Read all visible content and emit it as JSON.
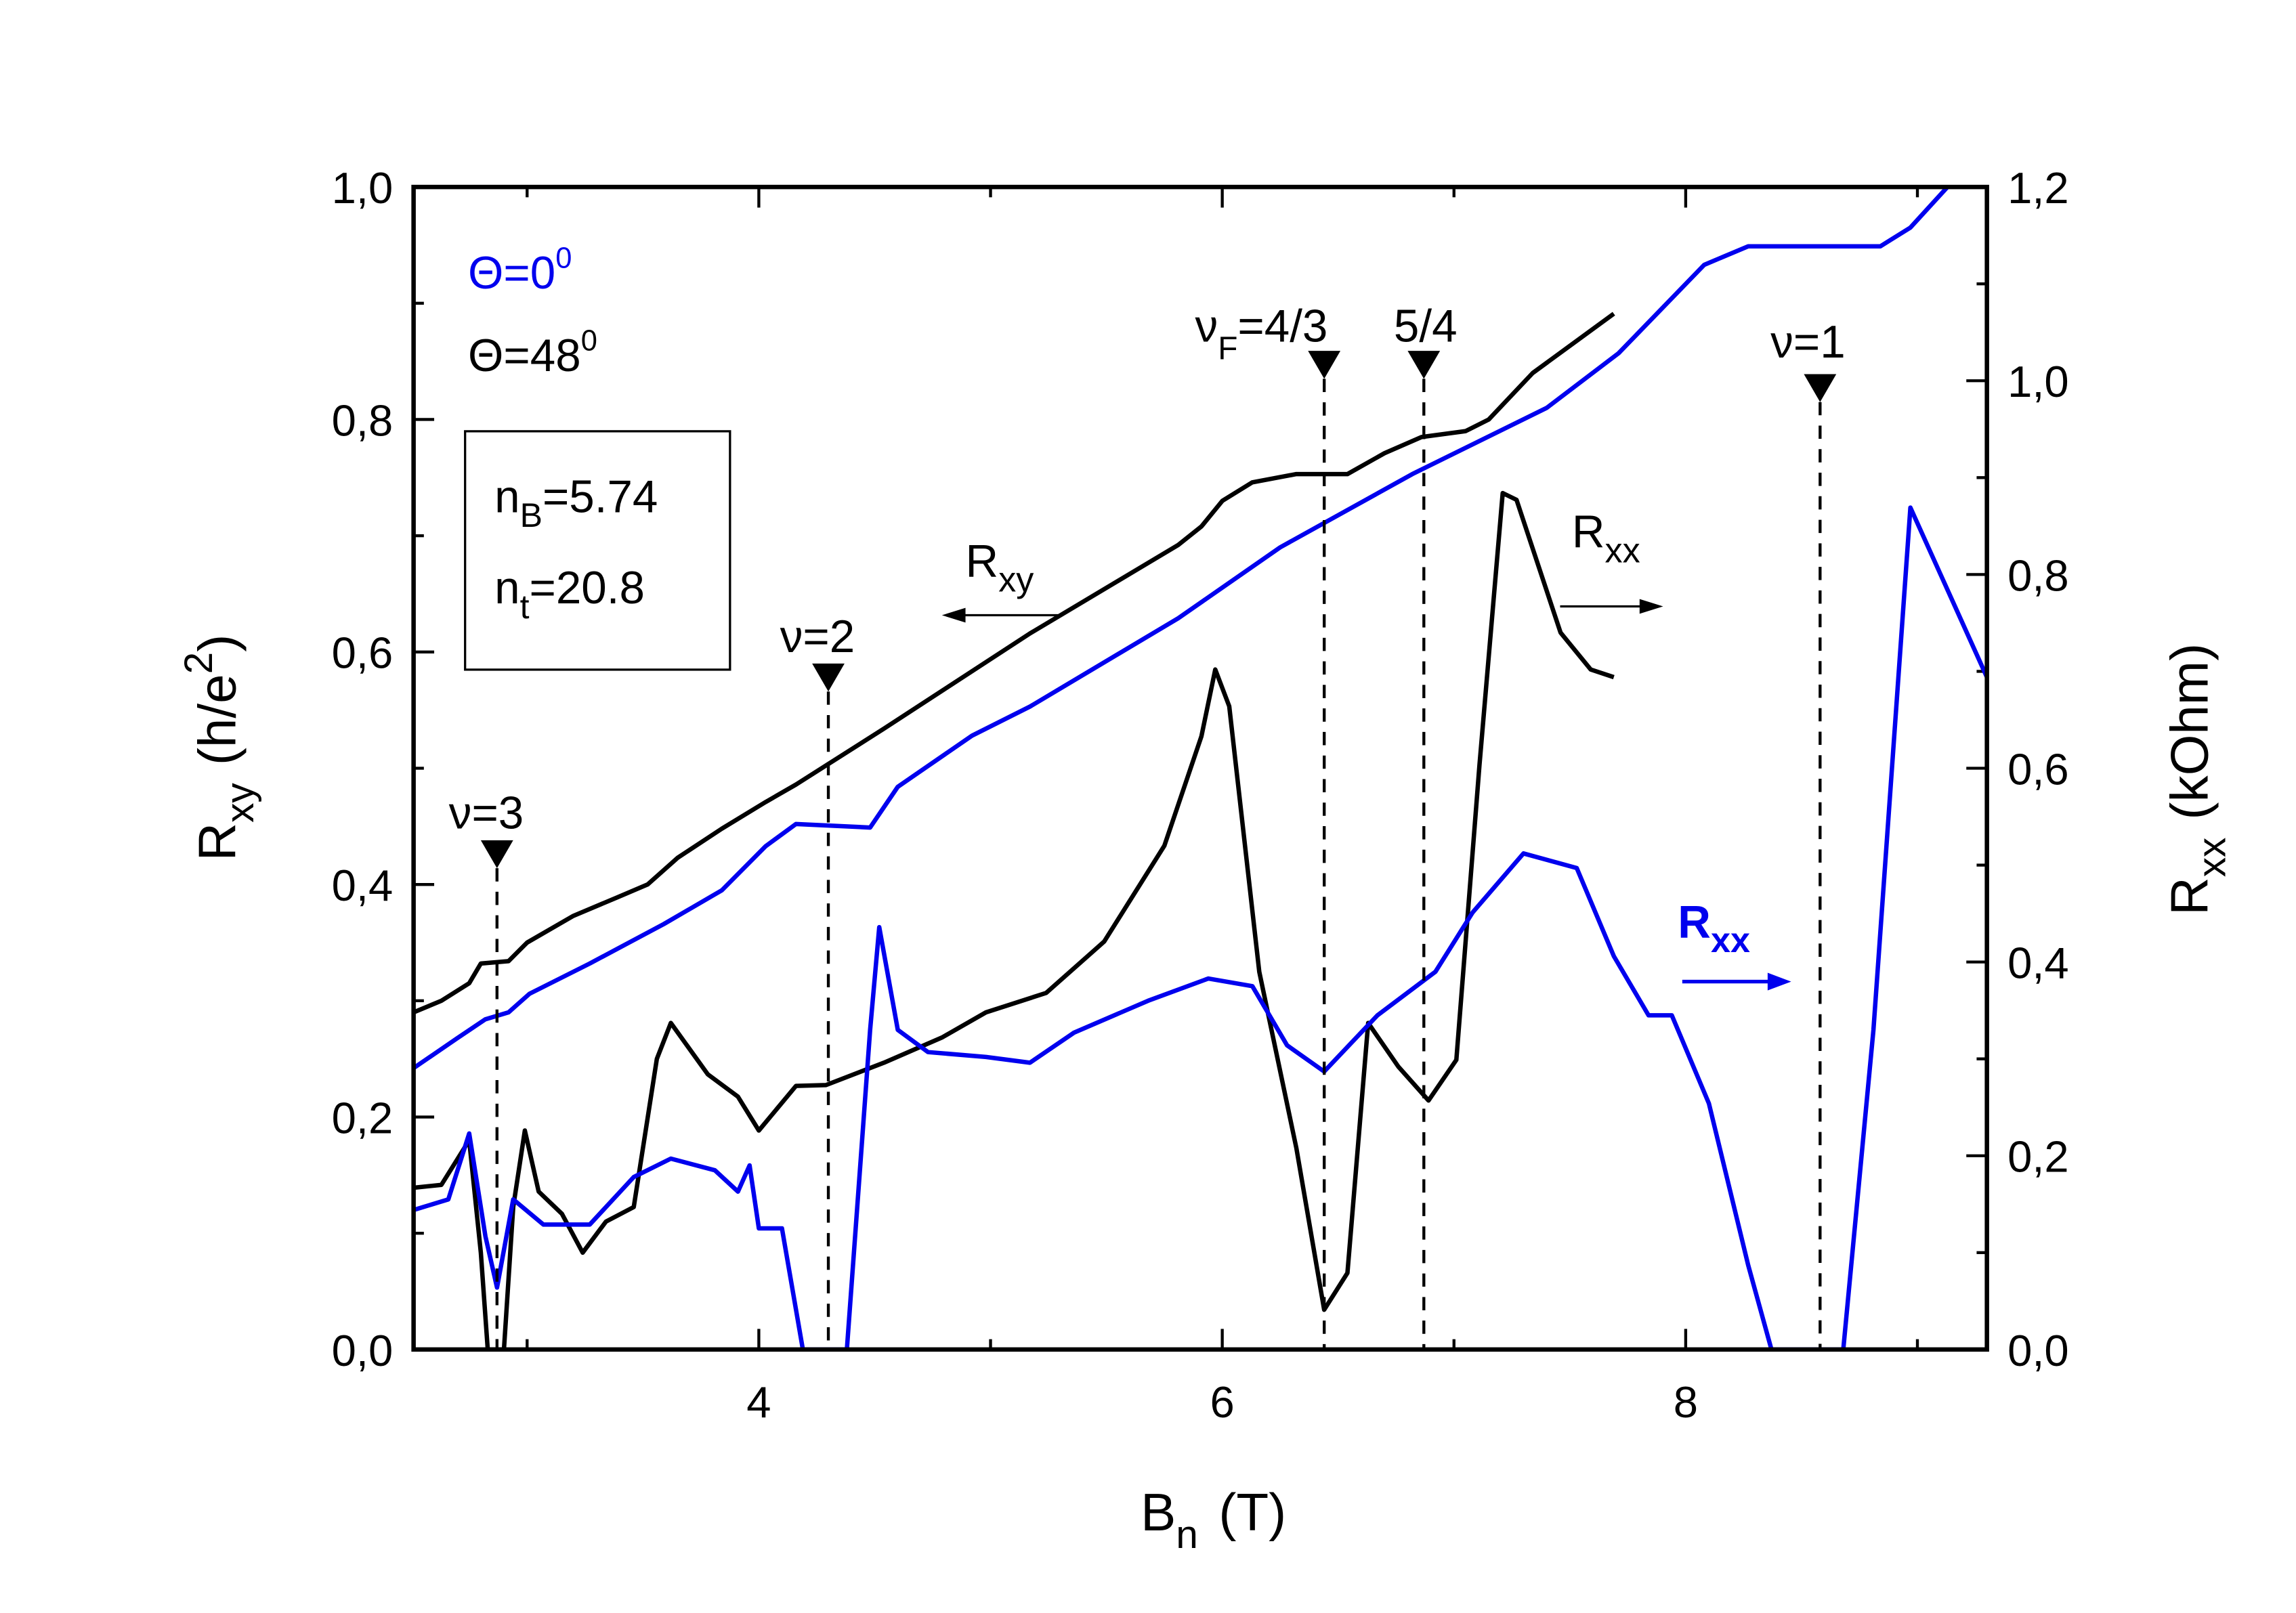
{
  "chart_data": {
    "type": "line",
    "xlabel": "B_n (T)",
    "ylabel_left": "R_xy (h/e^2)",
    "ylabel_right": "R_xx (kOhm)",
    "xlim": [
      2.51,
      9.3
    ],
    "ylim_left": [
      0,
      1.0
    ],
    "ylim_right": [
      0,
      1.2
    ],
    "x_ticks": [
      "4",
      "6",
      "8"
    ],
    "x_tick_values": [
      4,
      6,
      8
    ],
    "y_left_ticks": [
      "0,0",
      "0,2",
      "0,4",
      "0,6",
      "0,8",
      "1,0"
    ],
    "y_left_tick_values": [
      0,
      0.2,
      0.4,
      0.6,
      0.8,
      1.0
    ],
    "y_right_ticks": [
      "0,0",
      "0,2",
      "0,4",
      "0,6",
      "0,8",
      "1,0",
      "1,2"
    ],
    "y_right_tick_values": [
      0,
      0.2,
      0.4,
      0.6,
      0.8,
      1.0,
      1.2
    ],
    "legend": {
      "theta0": "Θ=0",
      "theta0_sup": "0",
      "theta48": "Θ=48",
      "theta48_sup": "0",
      "placement": "top-left"
    },
    "infobox": {
      "nB_label": "n",
      "nB_sub": "B",
      "nB_value": "=5.74",
      "nt_label": "n",
      "nt_sub": "t",
      "nt_value": "=20.8"
    },
    "colors": {
      "theta0": "#0000ee",
      "theta48": "#000000"
    },
    "series": [
      {
        "name": "Rxy Θ=48°",
        "axis": "left",
        "color": "#000000",
        "x": [
          2.51,
          2.63,
          2.75,
          2.8,
          2.92,
          3.0,
          3.2,
          3.39,
          3.52,
          3.65,
          3.84,
          4.03,
          4.16,
          4.54,
          5.17,
          5.81,
          5.91,
          6.0,
          6.13,
          6.32,
          6.54,
          6.7,
          6.86,
          7.05,
          7.15,
          7.34,
          7.69
        ],
        "y": [
          0.29,
          0.3,
          0.315,
          0.332,
          0.334,
          0.35,
          0.373,
          0.389,
          0.4,
          0.423,
          0.448,
          0.471,
          0.486,
          0.534,
          0.616,
          0.692,
          0.708,
          0.73,
          0.746,
          0.753,
          0.753,
          0.771,
          0.785,
          0.79,
          0.8,
          0.84,
          0.891
        ]
      },
      {
        "name": "Rxy Θ=0°",
        "axis": "left",
        "color": "#0000ee",
        "x": [
          2.51,
          2.7,
          2.82,
          2.92,
          3.01,
          3.27,
          3.59,
          3.84,
          4.03,
          4.16,
          4.48,
          4.6,
          4.92,
          5.17,
          5.81,
          6.25,
          6.82,
          7.4,
          7.71,
          8.08,
          8.27,
          8.84,
          8.97,
          9.13
        ],
        "y": [
          0.242,
          0.268,
          0.284,
          0.29,
          0.306,
          0.332,
          0.366,
          0.395,
          0.433,
          0.452,
          0.449,
          0.484,
          0.528,
          0.553,
          0.629,
          0.69,
          0.753,
          0.81,
          0.857,
          0.933,
          0.949,
          0.949,
          0.965,
          1.0
        ]
      },
      {
        "name": "Rxx Θ=48°",
        "axis": "right",
        "color": "#000000",
        "x": [
          2.51,
          2.63,
          2.75,
          2.8,
          2.83,
          2.9,
          2.94,
          2.99,
          3.05,
          3.15,
          3.24,
          3.34,
          3.46,
          3.56,
          3.62,
          3.78,
          3.91,
          4.0,
          4.16,
          4.29,
          4.54,
          4.79,
          4.98,
          5.24,
          5.49,
          5.75,
          5.91,
          5.97,
          6.03,
          6.16,
          6.32,
          6.44,
          6.54,
          6.63,
          6.76,
          6.89,
          7.01,
          7.11,
          7.21,
          7.27,
          7.46,
          7.59,
          7.69
        ],
        "y": [
          0.167,
          0.17,
          0.216,
          0.1,
          0.0,
          0.0,
          0.147,
          0.226,
          0.163,
          0.14,
          0.1,
          0.132,
          0.147,
          0.3,
          0.337,
          0.284,
          0.261,
          0.226,
          0.272,
          0.273,
          0.296,
          0.322,
          0.348,
          0.368,
          0.421,
          0.52,
          0.633,
          0.702,
          0.664,
          0.39,
          0.208,
          0.041,
          0.079,
          0.337,
          0.292,
          0.257,
          0.299,
          0.603,
          0.884,
          0.877,
          0.74,
          0.702,
          0.694
        ]
      },
      {
        "name": "Rxx Θ=0°",
        "axis": "right",
        "color": "#0000ee",
        "x": [
          2.51,
          2.66,
          2.75,
          2.82,
          2.87,
          2.94,
          3.07,
          3.27,
          3.46,
          3.62,
          3.81,
          3.91,
          3.96,
          4.0,
          4.1,
          4.19,
          4.38,
          4.48,
          4.52,
          4.6,
          4.73,
          4.98,
          5.17,
          5.36,
          5.68,
          5.94,
          6.13,
          6.28,
          6.44,
          6.67,
          6.92,
          7.08,
          7.3,
          7.53,
          7.69,
          7.84,
          7.94,
          8.1,
          8.27,
          8.37,
          8.68,
          8.81,
          8.97,
          9.1,
          9.3
        ],
        "y": [
          0.144,
          0.155,
          0.223,
          0.117,
          0.064,
          0.155,
          0.129,
          0.129,
          0.178,
          0.197,
          0.185,
          0.163,
          0.19,
          0.125,
          0.125,
          0.0,
          0.0,
          0.33,
          0.436,
          0.33,
          0.307,
          0.302,
          0.296,
          0.327,
          0.36,
          0.383,
          0.375,
          0.314,
          0.287,
          0.345,
          0.39,
          0.451,
          0.512,
          0.497,
          0.406,
          0.345,
          0.345,
          0.254,
          0.087,
          0.0,
          0.0,
          0.33,
          0.869,
          0.8,
          0.694
        ]
      }
    ],
    "markers": [
      {
        "label": "ν=3",
        "x": 2.87,
        "y": 0.414
      },
      {
        "label": "ν=2",
        "x": 4.3,
        "y": 0.566
      },
      {
        "label": "ν_F=4/3",
        "x": 6.44,
        "y": 0.835
      },
      {
        "label": "5/4",
        "x": 6.87,
        "y": 0.835
      },
      {
        "label": "ν=1",
        "x": 8.58,
        "y": 0.815
      }
    ],
    "annotations": {
      "rxy_black": "R",
      "rxy_black_sub": "xy",
      "rxx_black": "R",
      "rxx_black_sub": "xx",
      "rxx_blue": "R",
      "rxx_blue_sub": "xx",
      "nu3": "ν=3",
      "nu2": "ν=2",
      "nuF": "ν",
      "nuF_sub": "F",
      "nuF_val": "=4/3",
      "five4": "5/4",
      "nu1": "ν=1"
    },
    "axis_text": {
      "x_main": "B",
      "x_sub": "n",
      "x_unit": "(T)",
      "yl_main": "R",
      "yl_sub": "xy",
      "yl_unit": "(h/e",
      "yl_sup": "2",
      "yl_close": ")",
      "yr_main": "R",
      "yr_sub": "xx",
      "yr_unit": "(kOhm)"
    }
  }
}
